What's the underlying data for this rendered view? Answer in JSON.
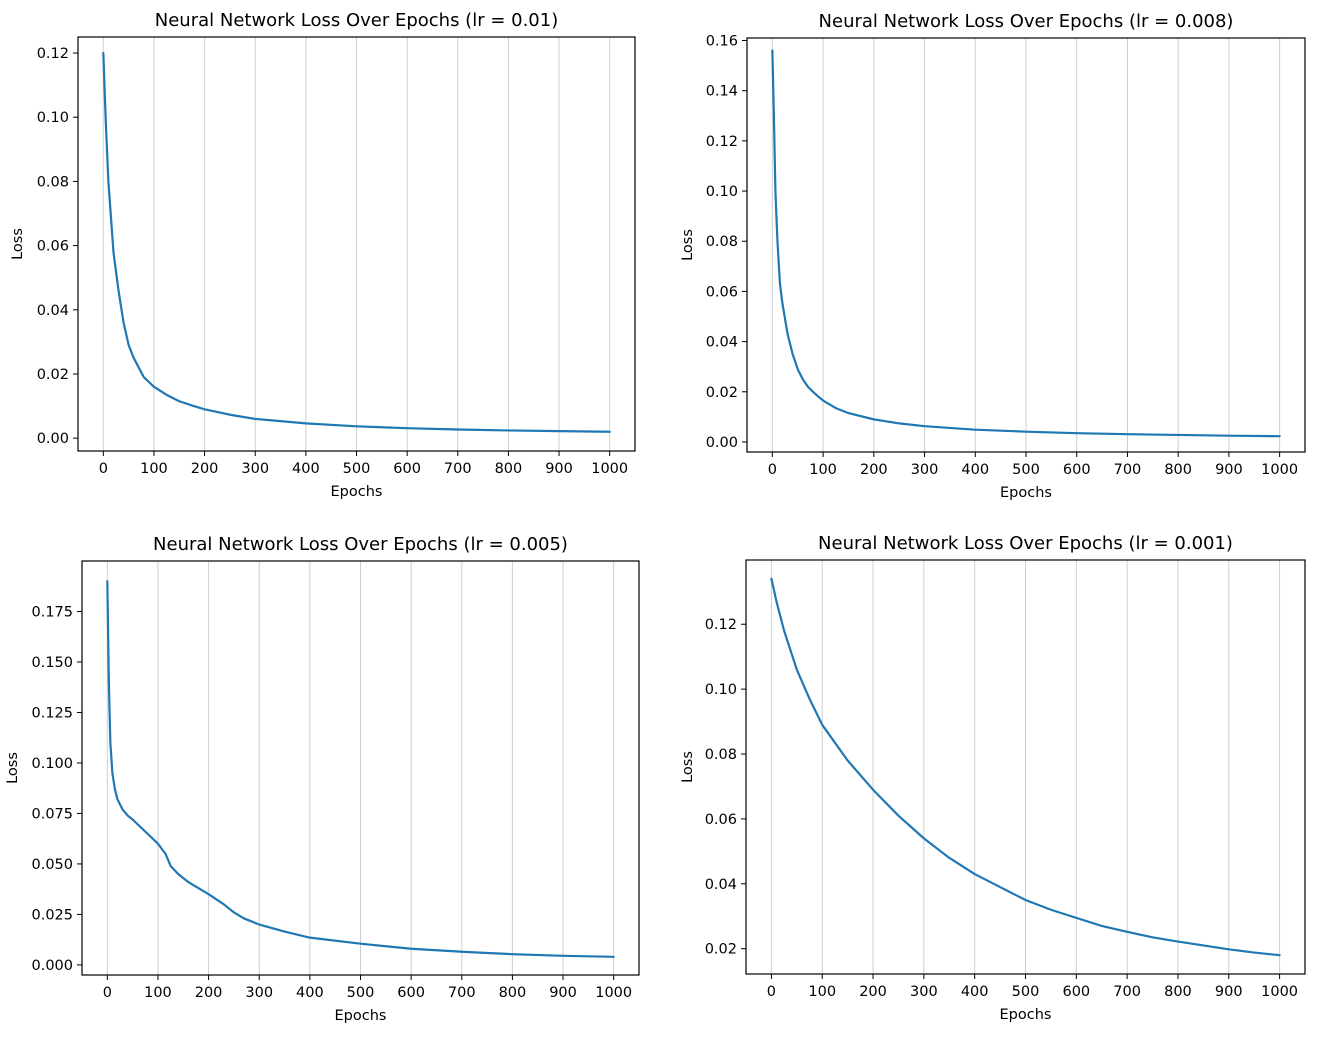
{
  "colors": {
    "series": "#1f77b4",
    "grid": "#cfcfcf"
  },
  "chart_data": [
    {
      "type": "line",
      "title": "Neural Network Loss Over Epochs (lr = 0.01)",
      "xlabel": "Epochs",
      "ylabel": "Loss",
      "xlim": [
        -50,
        1050
      ],
      "ylim": [
        -0.004,
        0.125
      ],
      "xticks": [
        0,
        100,
        200,
        300,
        400,
        500,
        600,
        700,
        800,
        900,
        1000
      ],
      "yticks": [
        0.0,
        0.02,
        0.04,
        0.06,
        0.08,
        0.1,
        0.12
      ],
      "ytick_labels": [
        "0.00",
        "0.02",
        "0.04",
        "0.06",
        "0.08",
        "0.10",
        "0.12"
      ],
      "grid": "x-only",
      "series": [
        {
          "x": [
            0,
            5,
            10,
            20,
            30,
            40,
            50,
            60,
            70,
            80,
            90,
            100,
            125,
            150,
            175,
            200,
            250,
            300,
            350,
            400,
            500,
            600,
            700,
            800,
            900,
            1000
          ],
          "y": [
            0.12,
            0.098,
            0.08,
            0.058,
            0.046,
            0.036,
            0.029,
            0.025,
            0.022,
            0.019,
            0.0175,
            0.016,
            0.0135,
            0.0115,
            0.0102,
            0.009,
            0.0073,
            0.006,
            0.0053,
            0.0046,
            0.0037,
            0.0031,
            0.0027,
            0.0024,
            0.0022,
            0.002
          ]
        }
      ]
    },
    {
      "type": "line",
      "title": "Neural Network Loss Over Epochs (lr = 0.008)",
      "xlabel": "Epochs",
      "ylabel": "Loss",
      "xlim": [
        -50,
        1050
      ],
      "ylim": [
        -0.004,
        0.161
      ],
      "xticks": [
        0,
        100,
        200,
        300,
        400,
        500,
        600,
        700,
        800,
        900,
        1000
      ],
      "yticks": [
        0.0,
        0.02,
        0.04,
        0.06,
        0.08,
        0.1,
        0.12,
        0.14,
        0.16
      ],
      "ytick_labels": [
        "0.00",
        "0.02",
        "0.04",
        "0.06",
        "0.08",
        "0.10",
        "0.12",
        "0.14",
        "0.16"
      ],
      "grid": "x-only",
      "series": [
        {
          "x": [
            0,
            3,
            6,
            10,
            15,
            20,
            30,
            40,
            50,
            60,
            70,
            80,
            90,
            100,
            125,
            150,
            200,
            250,
            300,
            400,
            500,
            600,
            700,
            800,
            900,
            1000
          ],
          "y": [
            0.156,
            0.13,
            0.1,
            0.08,
            0.063,
            0.055,
            0.043,
            0.035,
            0.029,
            0.025,
            0.022,
            0.02,
            0.0182,
            0.0165,
            0.0135,
            0.0115,
            0.009,
            0.0074,
            0.0063,
            0.0049,
            0.0041,
            0.0035,
            0.0031,
            0.0028,
            0.0025,
            0.0023
          ]
        }
      ]
    },
    {
      "type": "line",
      "title": "Neural Network Loss Over Epochs (lr = 0.005)",
      "xlabel": "Epochs",
      "ylabel": "Loss",
      "xlim": [
        -50,
        1050
      ],
      "ylim": [
        -0.005,
        0.2
      ],
      "xticks": [
        0,
        100,
        200,
        300,
        400,
        500,
        600,
        700,
        800,
        900,
        1000
      ],
      "yticks": [
        0.0,
        0.025,
        0.05,
        0.075,
        0.1,
        0.125,
        0.15,
        0.175
      ],
      "ytick_labels": [
        "0.000",
        "0.025",
        "0.050",
        "0.075",
        "0.100",
        "0.125",
        "0.150",
        "0.175"
      ],
      "grid": "x-only",
      "series": [
        {
          "x": [
            0,
            3,
            6,
            10,
            15,
            20,
            30,
            40,
            50,
            75,
            100,
            115,
            125,
            140,
            160,
            200,
            230,
            250,
            270,
            300,
            350,
            400,
            500,
            600,
            700,
            800,
            900,
            1000
          ],
          "y": [
            0.19,
            0.14,
            0.11,
            0.095,
            0.087,
            0.082,
            0.077,
            0.074,
            0.072,
            0.066,
            0.06,
            0.055,
            0.049,
            0.045,
            0.041,
            0.035,
            0.03,
            0.026,
            0.023,
            0.02,
            0.0165,
            0.0135,
            0.0105,
            0.008,
            0.0065,
            0.0053,
            0.0045,
            0.004
          ]
        }
      ]
    },
    {
      "type": "line",
      "title": "Neural Network Loss Over Epochs (lr = 0.001)",
      "xlabel": "Epochs",
      "ylabel": "Loss",
      "xlim": [
        -50,
        1050
      ],
      "ylim": [
        0.0122,
        0.1398
      ],
      "xticks": [
        0,
        100,
        200,
        300,
        400,
        500,
        600,
        700,
        800,
        900,
        1000
      ],
      "yticks": [
        0.02,
        0.04,
        0.06,
        0.08,
        0.1,
        0.12
      ],
      "ytick_labels": [
        "0.02",
        "0.04",
        "0.06",
        "0.08",
        "0.10",
        "0.12"
      ],
      "grid": "x-only",
      "series": [
        {
          "x": [
            0,
            10,
            25,
            50,
            75,
            100,
            150,
            200,
            250,
            300,
            350,
            400,
            450,
            500,
            550,
            600,
            650,
            700,
            750,
            800,
            850,
            900,
            950,
            1000
          ],
          "y": [
            0.134,
            0.127,
            0.118,
            0.106,
            0.097,
            0.089,
            0.078,
            0.069,
            0.061,
            0.054,
            0.048,
            0.043,
            0.039,
            0.035,
            0.032,
            0.0295,
            0.027,
            0.0252,
            0.0235,
            0.0222,
            0.021,
            0.0198,
            0.0188,
            0.018
          ]
        }
      ]
    }
  ]
}
